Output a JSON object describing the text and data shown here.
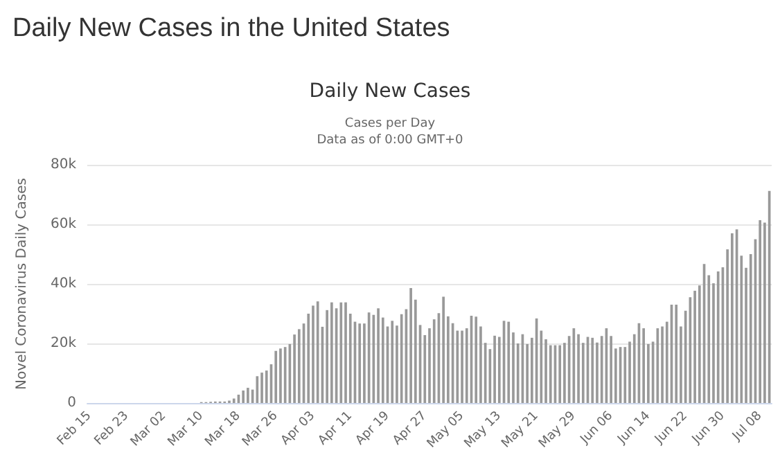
{
  "chart_data": {
    "type": "bar",
    "title": "Daily New Cases in the United States",
    "subtitle": "Daily New Cases",
    "annotations": [
      "Cases per Day",
      "Data as of 0:00 GMT+0"
    ],
    "ylabel": "Novel Coronavirus Daily Cases",
    "categories": [
      "Feb 15",
      null,
      null,
      null,
      null,
      null,
      null,
      null,
      "Feb 23",
      null,
      null,
      null,
      null,
      null,
      null,
      null,
      "Mar 02",
      null,
      null,
      null,
      null,
      null,
      null,
      null,
      "Mar 10",
      null,
      null,
      null,
      null,
      null,
      null,
      null,
      "Mar 18",
      null,
      null,
      null,
      null,
      null,
      null,
      null,
      "Mar 26",
      null,
      null,
      null,
      null,
      null,
      null,
      null,
      "Apr 03",
      null,
      null,
      null,
      null,
      null,
      null,
      null,
      "Apr 11",
      null,
      null,
      null,
      null,
      null,
      null,
      null,
      "Apr 19",
      null,
      null,
      null,
      null,
      null,
      null,
      null,
      "Apr 27",
      null,
      null,
      null,
      null,
      null,
      null,
      null,
      "May 05",
      null,
      null,
      null,
      null,
      null,
      null,
      null,
      "May 13",
      null,
      null,
      null,
      null,
      null,
      null,
      null,
      "May 21",
      null,
      null,
      null,
      null,
      null,
      null,
      null,
      "May 29",
      null,
      null,
      null,
      null,
      null,
      null,
      null,
      "Jun 06",
      null,
      null,
      null,
      null,
      null,
      null,
      null,
      "Jun 14",
      null,
      null,
      null,
      null,
      null,
      null,
      null,
      "Jun 22",
      null,
      null,
      null,
      null,
      null,
      null,
      null,
      "Jun 30",
      null,
      null,
      null,
      null,
      null,
      null,
      null,
      "Jul 08",
      null,
      null
    ],
    "values": [
      0,
      0,
      0,
      0,
      0,
      0,
      0,
      0,
      0,
      0,
      0,
      0,
      0,
      0,
      0,
      0,
      0,
      0,
      0,
      0,
      0,
      0,
      0,
      0,
      300,
      300,
      400,
      500,
      500,
      500,
      800,
      1500,
      2800,
      4200,
      5100,
      4500,
      9000,
      10200,
      10900,
      13000,
      17500,
      18300,
      18800,
      19800,
      23000,
      24800,
      26700,
      30000,
      32700,
      34100,
      25600,
      31200,
      33800,
      31800,
      33800,
      33800,
      30000,
      27300,
      26700,
      26700,
      30400,
      29600,
      31800,
      28700,
      25700,
      27600,
      26000,
      29800,
      31500,
      38600,
      34700,
      26200,
      22800,
      25100,
      28100,
      30200,
      35700,
      29100,
      26800,
      24300,
      24300,
      25100,
      29300,
      29000,
      25700,
      20200,
      18100,
      22600,
      22200,
      27600,
      27300,
      23700,
      20000,
      23100,
      19800,
      21900,
      28400,
      24300,
      21400,
      19400,
      19400,
      19400,
      20200,
      22500,
      25100,
      23100,
      20200,
      22200,
      21900,
      20300,
      22500,
      25100,
      22500,
      18300,
      18800,
      18800,
      20600,
      23100,
      26800,
      25100,
      19800,
      20600,
      25100,
      25700,
      27300,
      33000,
      33000,
      25700,
      31000,
      35500,
      37700,
      39500,
      46700,
      42900,
      40200,
      44200,
      45600,
      51600,
      57000,
      58300,
      49500,
      45400,
      50000,
      55000,
      61400,
      60600,
      71200
    ],
    "color": "#999999",
    "ylim": [
      0,
      80000
    ],
    "yticks": [
      0,
      {
        "value": 20000,
        "label": "20k"
      },
      {
        "value": 40000,
        "label": "40k"
      },
      {
        "value": 60000,
        "label": "60k"
      },
      {
        "value": 80000,
        "label": "80k"
      }
    ],
    "grid": "y"
  }
}
